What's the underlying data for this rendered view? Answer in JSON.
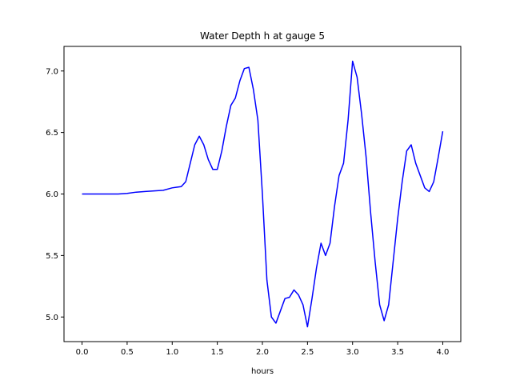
{
  "chart_data": {
    "type": "line",
    "title": "Water Depth h at gauge 5",
    "xlabel": "hours",
    "ylabel": "",
    "xlim": [
      -0.2,
      4.2
    ],
    "ylim": [
      4.8,
      7.2
    ],
    "xticks": [
      0.0,
      0.5,
      1.0,
      1.5,
      2.0,
      2.5,
      3.0,
      3.5,
      4.0
    ],
    "xtick_labels": [
      "0.0",
      "0.5",
      "1.0",
      "1.5",
      "2.0",
      "2.5",
      "3.0",
      "3.5",
      "4.0"
    ],
    "yticks": [
      5.0,
      5.5,
      6.0,
      6.5,
      7.0
    ],
    "ytick_labels": [
      "5.0",
      "5.5",
      "6.0",
      "6.5",
      "7.0"
    ],
    "grid": false,
    "series": [
      {
        "color": "#0000ff",
        "x": [
          0.0,
          0.1,
          0.2,
          0.3,
          0.4,
          0.5,
          0.6,
          0.7,
          0.8,
          0.9,
          1.0,
          1.05,
          1.1,
          1.15,
          1.2,
          1.25,
          1.3,
          1.35,
          1.4,
          1.45,
          1.5,
          1.55,
          1.6,
          1.65,
          1.7,
          1.75,
          1.8,
          1.85,
          1.9,
          1.95,
          2.0,
          2.05,
          2.1,
          2.15,
          2.2,
          2.25,
          2.3,
          2.35,
          2.4,
          2.45,
          2.5,
          2.55,
          2.6,
          2.65,
          2.7,
          2.75,
          2.8,
          2.85,
          2.9,
          2.95,
          3.0,
          3.05,
          3.1,
          3.15,
          3.2,
          3.25,
          3.3,
          3.35,
          3.4,
          3.45,
          3.5,
          3.55,
          3.6,
          3.65,
          3.7,
          3.75,
          3.8,
          3.85,
          3.9,
          3.95,
          4.0
        ],
        "y": [
          6.0,
          6.0,
          6.0,
          6.0,
          6.0,
          6.005,
          6.015,
          6.02,
          6.025,
          6.03,
          6.05,
          6.055,
          6.06,
          6.1,
          6.25,
          6.4,
          6.47,
          6.4,
          6.28,
          6.2,
          6.2,
          6.35,
          6.55,
          6.72,
          6.78,
          6.92,
          7.02,
          7.03,
          6.85,
          6.6,
          6.0,
          5.3,
          5.0,
          4.95,
          5.05,
          5.15,
          5.16,
          5.22,
          5.18,
          5.1,
          4.92,
          5.15,
          5.4,
          5.6,
          5.5,
          5.6,
          5.9,
          6.15,
          6.25,
          6.6,
          7.08,
          6.95,
          6.65,
          6.3,
          5.85,
          5.45,
          5.1,
          4.97,
          5.1,
          5.45,
          5.8,
          6.1,
          6.35,
          6.4,
          6.25,
          6.15,
          6.05,
          6.02,
          6.1,
          6.3,
          6.51
        ]
      }
    ]
  }
}
